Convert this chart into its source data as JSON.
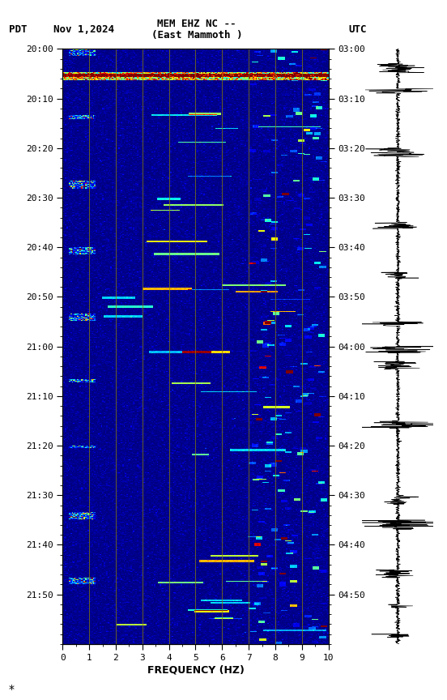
{
  "title_line1": "MEM EHZ NC --",
  "title_line2": "(East Mammoth )",
  "left_label": "PDT",
  "date_label": "Nov 1,2024",
  "right_label": "UTC",
  "left_times": [
    "20:00",
    "20:10",
    "20:20",
    "20:30",
    "20:40",
    "20:50",
    "21:00",
    "21:10",
    "21:20",
    "21:30",
    "21:40",
    "21:50"
  ],
  "right_times": [
    "03:00",
    "03:10",
    "03:20",
    "03:30",
    "03:40",
    "03:50",
    "04:00",
    "04:10",
    "04:20",
    "04:30",
    "04:40",
    "04:50"
  ],
  "freq_label": "FREQUENCY (HZ)",
  "freq_ticks": [
    0,
    1,
    2,
    3,
    4,
    5,
    6,
    7,
    8,
    9,
    10
  ],
  "duration_minutes": 120,
  "grid_color": "#8B8000",
  "colormap": "jet",
  "vmin": 0.0,
  "vmax": 2.5
}
